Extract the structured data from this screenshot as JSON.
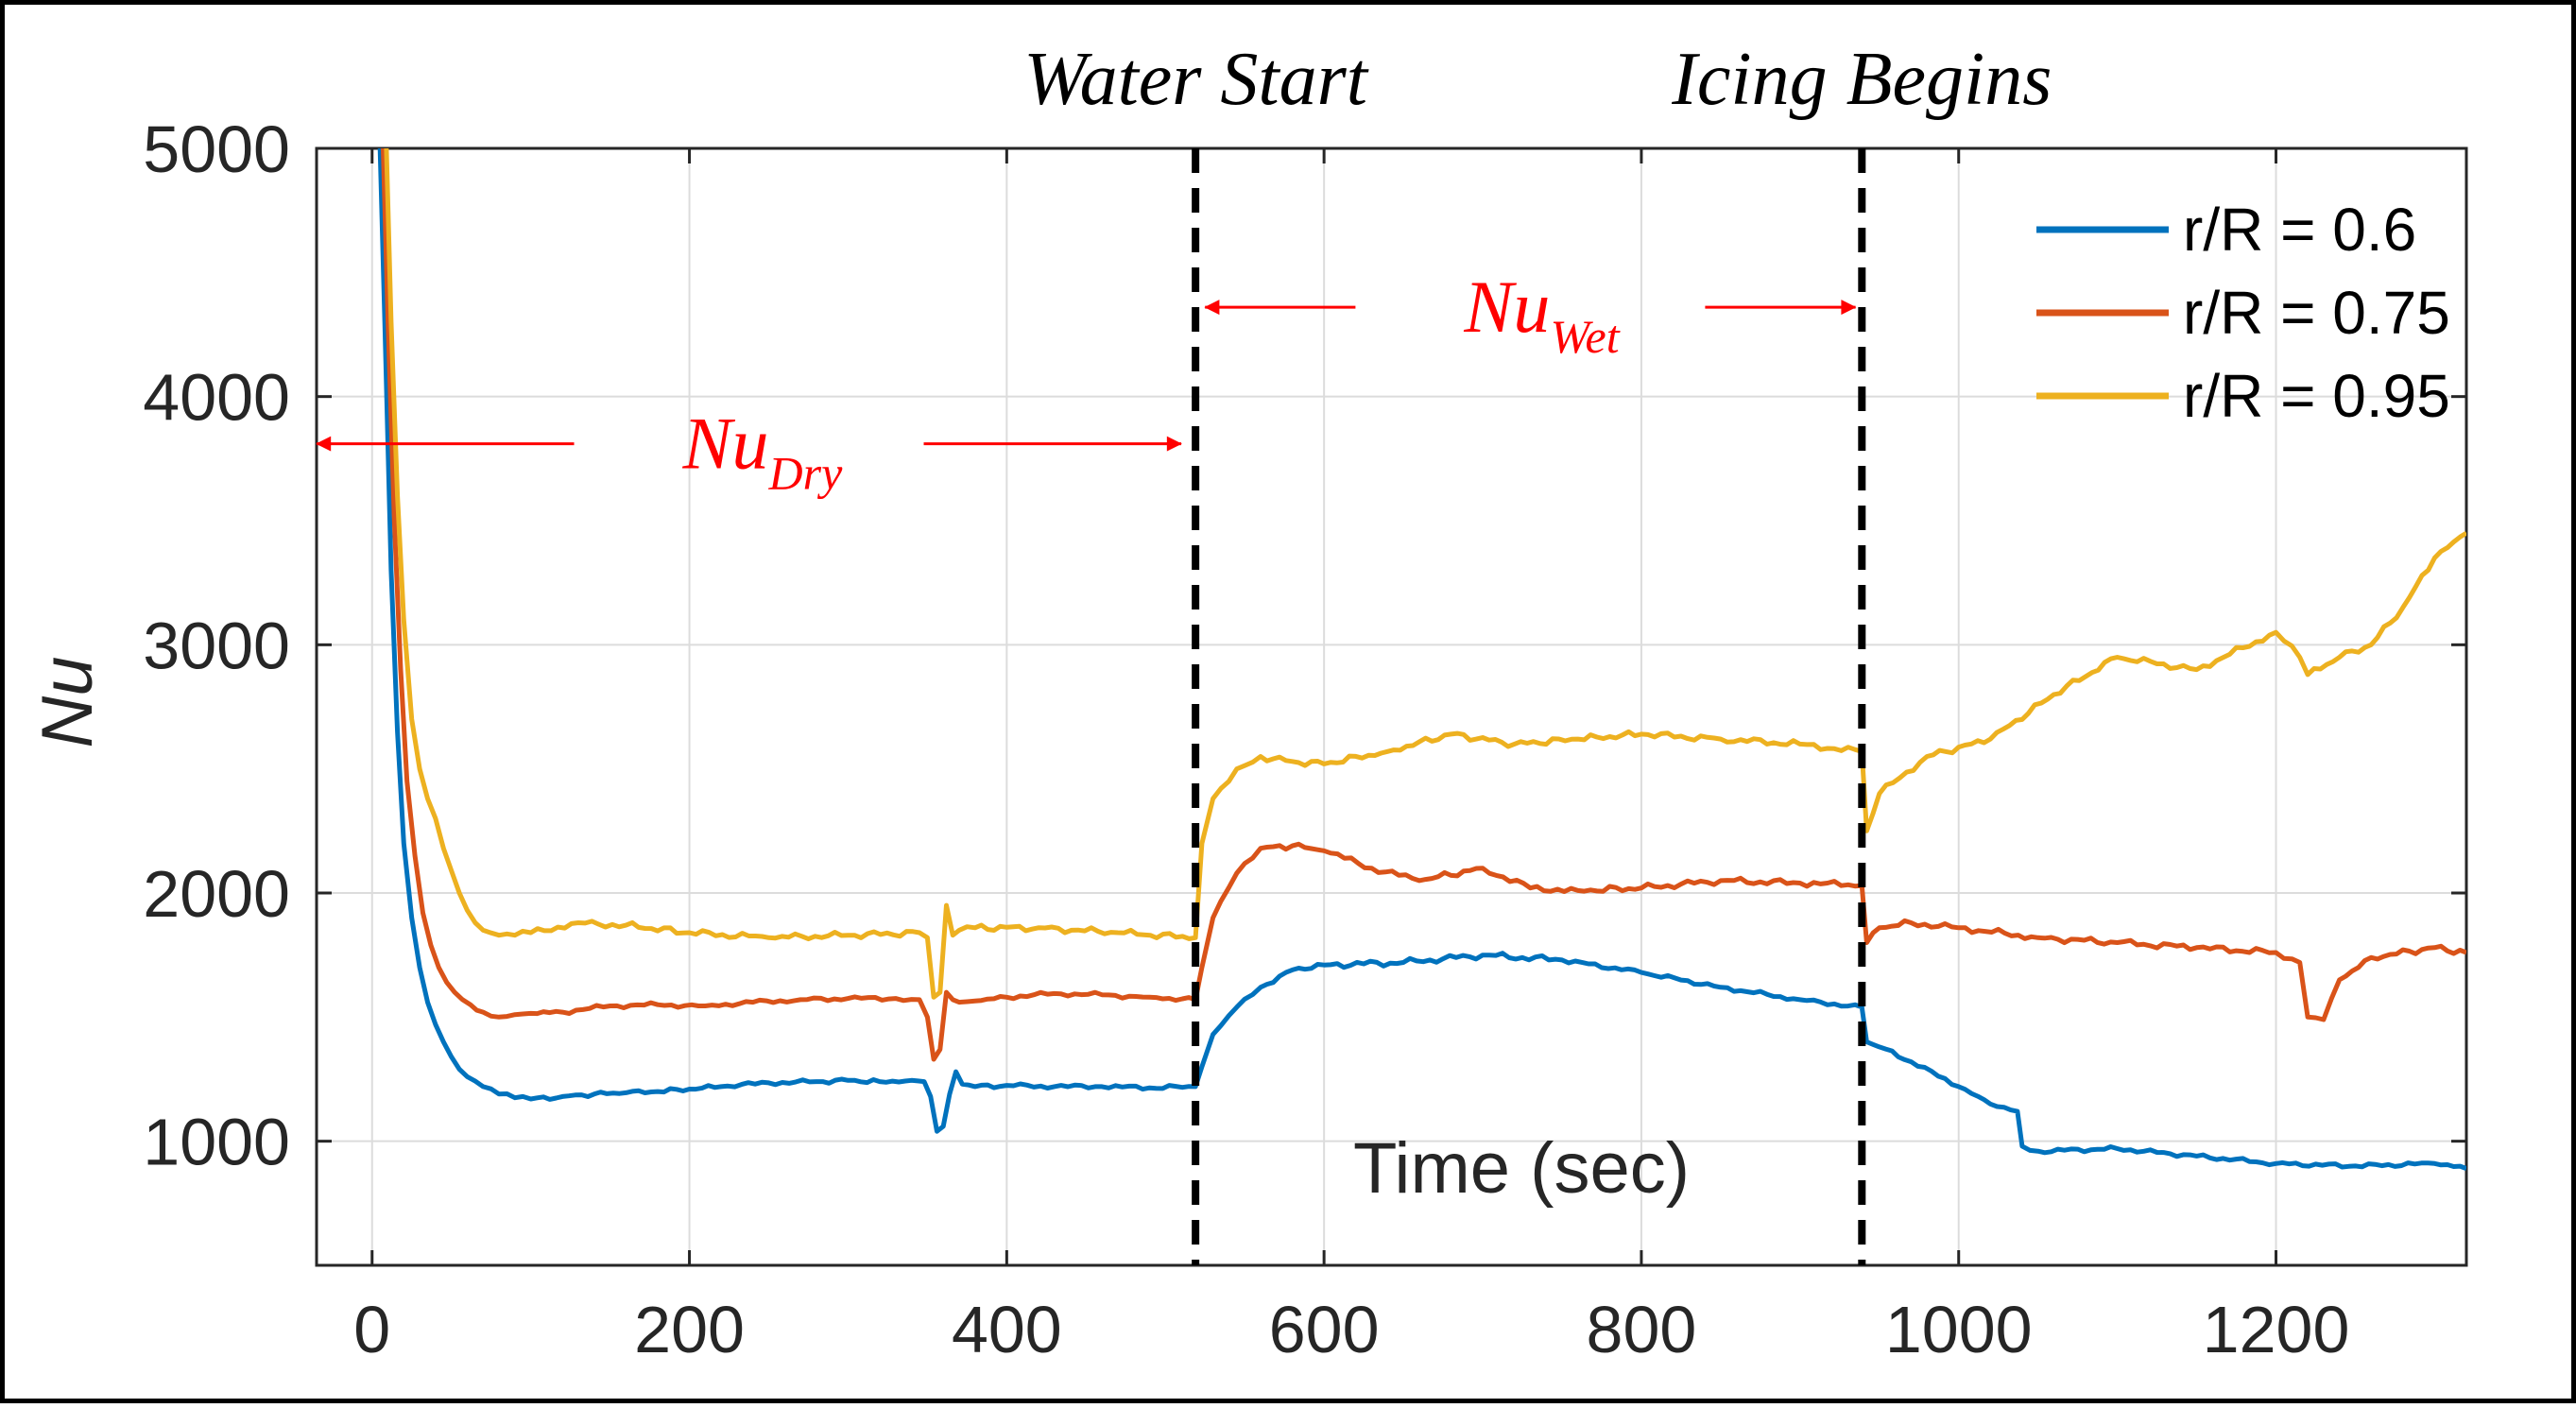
{
  "chart_data": {
    "type": "line",
    "title": "",
    "xlabel": "Time (sec)",
    "ylabel": "Nu",
    "xlim": [
      -35,
      1320
    ],
    "ylim": [
      500,
      5000
    ],
    "xticks": [
      0,
      200,
      400,
      600,
      800,
      1000,
      1200
    ],
    "yticks": [
      1000,
      2000,
      3000,
      4000,
      5000
    ],
    "grid": true,
    "legend_position": "top-right",
    "series": [
      {
        "name": "r/R = 0.6",
        "color": "#0072bd",
        "x": [
          5,
          8,
          12,
          16,
          20,
          25,
          30,
          35,
          40,
          45,
          50,
          55,
          60,
          70,
          80,
          90,
          100,
          120,
          140,
          160,
          180,
          200,
          220,
          250,
          280,
          300,
          320,
          340,
          348,
          352,
          356,
          360,
          364,
          368,
          372,
          380,
          400,
          430,
          460,
          490,
          519,
          523,
          530,
          545,
          560,
          580,
          600,
          650,
          700,
          750,
          800,
          850,
          900,
          939,
          942,
          950,
          970,
          1000,
          1020,
          1037,
          1040,
          1050,
          1100,
          1150,
          1200,
          1250,
          1300,
          1320
        ],
        "y": [
          5000,
          4300,
          3300,
          2650,
          2200,
          1900,
          1700,
          1560,
          1470,
          1400,
          1340,
          1290,
          1260,
          1220,
          1190,
          1175,
          1170,
          1180,
          1190,
          1195,
          1200,
          1210,
          1220,
          1235,
          1240,
          1245,
          1240,
          1245,
          1240,
          1180,
          1040,
          1060,
          1190,
          1280,
          1230,
          1220,
          1225,
          1220,
          1220,
          1215,
          1220,
          1300,
          1430,
          1540,
          1620,
          1690,
          1710,
          1720,
          1750,
          1730,
          1680,
          1620,
          1570,
          1540,
          1400,
          1380,
          1320,
          1220,
          1150,
          1120,
          980,
          960,
          970,
          940,
          910,
          900,
          910,
          890
        ]
      },
      {
        "name": "r/R = 0.75",
        "color": "#d95319",
        "x": [
          7,
          10,
          14,
          18,
          22,
          27,
          32,
          37,
          42,
          47,
          52,
          57,
          62,
          70,
          80,
          90,
          100,
          120,
          150,
          180,
          210,
          240,
          270,
          300,
          330,
          345,
          350,
          354,
          358,
          362,
          366,
          370,
          380,
          400,
          430,
          460,
          490,
          519,
          523,
          530,
          545,
          560,
          580,
          600,
          630,
          660,
          700,
          730,
          760,
          800,
          850,
          900,
          939,
          942,
          950,
          970,
          1000,
          1050,
          1100,
          1150,
          1200,
          1215,
          1220,
          1230,
          1240,
          1260,
          1300,
          1320
        ],
        "y": [
          5000,
          4300,
          3500,
          2900,
          2450,
          2150,
          1920,
          1790,
          1700,
          1640,
          1600,
          1570,
          1550,
          1520,
          1500,
          1510,
          1515,
          1520,
          1545,
          1550,
          1545,
          1560,
          1570,
          1575,
          1575,
          1570,
          1500,
          1330,
          1370,
          1600,
          1570,
          1560,
          1565,
          1580,
          1595,
          1590,
          1580,
          1570,
          1700,
          1900,
          2080,
          2180,
          2190,
          2170,
          2100,
          2050,
          2100,
          2020,
          2010,
          2020,
          2050,
          2040,
          2030,
          1800,
          1860,
          1880,
          1860,
          1820,
          1800,
          1780,
          1760,
          1720,
          1500,
          1490,
          1650,
          1740,
          1780,
          1760
        ]
      },
      {
        "name": "r/R = 0.95",
        "color": "#edb120",
        "x": [
          9,
          12,
          16,
          20,
          25,
          30,
          35,
          40,
          45,
          50,
          55,
          60,
          65,
          70,
          80,
          90,
          100,
          130,
          160,
          200,
          250,
          300,
          345,
          350,
          354,
          358,
          362,
          366,
          370,
          380,
          420,
          470,
          519,
          523,
          530,
          545,
          560,
          580,
          600,
          640,
          680,
          720,
          760,
          800,
          850,
          900,
          939,
          942,
          950,
          980,
          1020,
          1060,
          1100,
          1150,
          1200,
          1215,
          1220,
          1240,
          1260,
          1280,
          1300,
          1320
        ],
        "y": [
          5000,
          4300,
          3600,
          3100,
          2700,
          2500,
          2380,
          2300,
          2180,
          2090,
          2000,
          1930,
          1880,
          1850,
          1830,
          1830,
          1840,
          1880,
          1870,
          1840,
          1820,
          1830,
          1840,
          1820,
          1580,
          1600,
          1950,
          1830,
          1850,
          1860,
          1860,
          1840,
          1820,
          2200,
          2380,
          2500,
          2550,
          2530,
          2520,
          2570,
          2640,
          2600,
          2620,
          2640,
          2620,
          2600,
          2570,
          2250,
          2400,
          2550,
          2620,
          2800,
          2950,
          2900,
          3050,
          2950,
          2880,
          2950,
          3000,
          3150,
          3350,
          3450
        ]
      }
    ],
    "vlines": [
      {
        "x": 519,
        "label": "Water Start"
      },
      {
        "x": 939,
        "label": "Icing Begins"
      }
    ],
    "annotations": [
      {
        "main": "Nu",
        "sub": "Dry",
        "x_from": -35,
        "x_to": 510,
        "y": 3810
      },
      {
        "main": "Nu",
        "sub": "Wet",
        "x_from": 525,
        "x_to": 935,
        "y": 4360
      }
    ]
  }
}
